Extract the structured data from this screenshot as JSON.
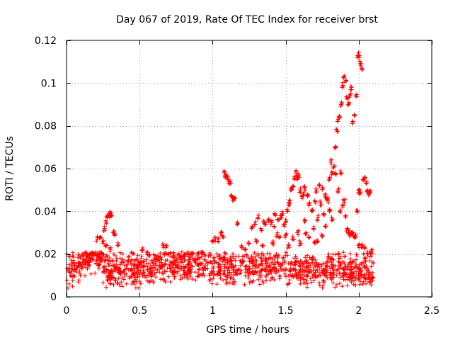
{
  "chart_data": {
    "type": "scatter",
    "title": "Day 067 of 2019, Rate Of TEC Index for receiver brst",
    "xlabel": "GPS time / hours",
    "ylabel": "ROTI / TECUs",
    "xlim": [
      0,
      2.5
    ],
    "ylim": [
      0,
      0.12
    ],
    "xticks": [
      0,
      0.5,
      1,
      1.5,
      2,
      2.5
    ],
    "xtick_labels": [
      "0",
      "0.5",
      "1",
      "1.5",
      "2",
      "2.5"
    ],
    "yticks": [
      0,
      0.02,
      0.04,
      0.06,
      0.08,
      0.1,
      0.12
    ],
    "ytick_labels": [
      "0",
      "0.02",
      "0.04",
      "0.06",
      "0.08",
      "0.1",
      "0.12"
    ],
    "grid": true,
    "marker": "+",
    "color": "#ff0000",
    "series": [
      {
        "name": "ROTI",
        "segments": [
          {
            "x": [
              0.0,
              0.1
            ],
            "y": [
              0.013,
              0.015
            ]
          },
          {
            "x": [
              0.1,
              0.25
            ],
            "y": [
              0.017,
              0.019
            ]
          },
          {
            "x": [
              0.25,
              0.6
            ],
            "y": [
              0.013,
              0.013
            ]
          },
          {
            "x": [
              0.6,
              1.0
            ],
            "y": [
              0.015,
              0.015
            ]
          },
          {
            "x": [
              1.0,
              1.5
            ],
            "y": [
              0.013,
              0.014
            ]
          },
          {
            "x": [
              1.5,
              2.1
            ],
            "y": [
              0.013,
              0.012
            ]
          }
        ],
        "bands": [
          {
            "x": [
              0.0,
              2.1
            ],
            "y_low": 0.004,
            "y_high": 0.021
          }
        ],
        "points": [
          {
            "x": 0.21,
            "y": 0.027
          },
          {
            "x": 0.23,
            "y": 0.028
          },
          {
            "x": 0.25,
            "y": 0.025
          },
          {
            "x": 0.26,
            "y": 0.032
          },
          {
            "x": 0.27,
            "y": 0.035
          },
          {
            "x": 0.28,
            "y": 0.037
          },
          {
            "x": 0.29,
            "y": 0.038
          },
          {
            "x": 0.3,
            "y": 0.039
          },
          {
            "x": 0.31,
            "y": 0.038
          },
          {
            "x": 0.32,
            "y": 0.03
          },
          {
            "x": 0.33,
            "y": 0.029
          },
          {
            "x": 0.27,
            "y": 0.024
          },
          {
            "x": 0.3,
            "y": 0.022
          },
          {
            "x": 0.35,
            "y": 0.024
          },
          {
            "x": 0.52,
            "y": 0.022
          },
          {
            "x": 0.55,
            "y": 0.021
          },
          {
            "x": 0.66,
            "y": 0.024
          },
          {
            "x": 0.68,
            "y": 0.023
          },
          {
            "x": 0.81,
            "y": 0.02
          },
          {
            "x": 0.86,
            "y": 0.02
          },
          {
            "x": 0.9,
            "y": 0.02
          },
          {
            "x": 0.93,
            "y": 0.021
          },
          {
            "x": 1.0,
            "y": 0.026
          },
          {
            "x": 1.02,
            "y": 0.027
          },
          {
            "x": 1.04,
            "y": 0.027
          },
          {
            "x": 1.06,
            "y": 0.03
          },
          {
            "x": 1.07,
            "y": 0.028
          },
          {
            "x": 1.08,
            "y": 0.058
          },
          {
            "x": 1.09,
            "y": 0.057
          },
          {
            "x": 1.1,
            "y": 0.056
          },
          {
            "x": 1.11,
            "y": 0.054
          },
          {
            "x": 1.12,
            "y": 0.053
          },
          {
            "x": 1.13,
            "y": 0.047
          },
          {
            "x": 1.14,
            "y": 0.046
          },
          {
            "x": 1.15,
            "y": 0.046
          },
          {
            "x": 1.17,
            "y": 0.034
          },
          {
            "x": 1.2,
            "y": 0.023
          },
          {
            "x": 1.22,
            "y": 0.022
          },
          {
            "x": 1.25,
            "y": 0.025
          },
          {
            "x": 1.27,
            "y": 0.033
          },
          {
            "x": 1.29,
            "y": 0.034
          },
          {
            "x": 1.3,
            "y": 0.026
          },
          {
            "x": 1.31,
            "y": 0.037
          },
          {
            "x": 1.33,
            "y": 0.032
          },
          {
            "x": 1.34,
            "y": 0.024
          },
          {
            "x": 1.35,
            "y": 0.035
          },
          {
            "x": 1.36,
            "y": 0.034
          },
          {
            "x": 1.38,
            "y": 0.036
          },
          {
            "x": 1.4,
            "y": 0.035
          },
          {
            "x": 1.41,
            "y": 0.025
          },
          {
            "x": 1.42,
            "y": 0.033
          },
          {
            "x": 1.43,
            "y": 0.038
          },
          {
            "x": 1.44,
            "y": 0.029
          },
          {
            "x": 1.45,
            "y": 0.036
          },
          {
            "x": 1.46,
            "y": 0.028
          },
          {
            "x": 1.47,
            "y": 0.037
          },
          {
            "x": 1.48,
            "y": 0.039
          },
          {
            "x": 1.49,
            "y": 0.033
          },
          {
            "x": 1.5,
            "y": 0.036
          },
          {
            "x": 1.51,
            "y": 0.041
          },
          {
            "x": 1.52,
            "y": 0.043
          },
          {
            "x": 1.53,
            "y": 0.045
          },
          {
            "x": 1.54,
            "y": 0.05
          },
          {
            "x": 1.55,
            "y": 0.052
          },
          {
            "x": 1.56,
            "y": 0.055
          },
          {
            "x": 1.57,
            "y": 0.058
          },
          {
            "x": 1.58,
            "y": 0.056
          },
          {
            "x": 1.59,
            "y": 0.057
          },
          {
            "x": 1.6,
            "y": 0.05
          },
          {
            "x": 1.61,
            "y": 0.047
          },
          {
            "x": 1.62,
            "y": 0.048
          },
          {
            "x": 1.63,
            "y": 0.051
          },
          {
            "x": 1.5,
            "y": 0.029
          },
          {
            "x": 1.52,
            "y": 0.024
          },
          {
            "x": 1.55,
            "y": 0.027
          },
          {
            "x": 1.58,
            "y": 0.03
          },
          {
            "x": 1.6,
            "y": 0.025
          },
          {
            "x": 1.63,
            "y": 0.035
          },
          {
            "x": 1.64,
            "y": 0.03
          },
          {
            "x": 1.66,
            "y": 0.028
          },
          {
            "x": 1.68,
            "y": 0.04
          },
          {
            "x": 1.69,
            "y": 0.032
          },
          {
            "x": 1.7,
            "y": 0.045
          },
          {
            "x": 1.71,
            "y": 0.05
          },
          {
            "x": 1.72,
            "y": 0.037
          },
          {
            "x": 1.73,
            "y": 0.052
          },
          {
            "x": 1.74,
            "y": 0.044
          },
          {
            "x": 1.75,
            "y": 0.051
          },
          {
            "x": 1.76,
            "y": 0.039
          },
          {
            "x": 1.77,
            "y": 0.048
          },
          {
            "x": 1.78,
            "y": 0.046
          },
          {
            "x": 1.79,
            "y": 0.045
          },
          {
            "x": 1.8,
            "y": 0.055
          },
          {
            "x": 1.81,
            "y": 0.063
          },
          {
            "x": 1.82,
            "y": 0.058
          },
          {
            "x": 1.83,
            "y": 0.061
          },
          {
            "x": 1.84,
            "y": 0.07
          },
          {
            "x": 1.85,
            "y": 0.078
          },
          {
            "x": 1.86,
            "y": 0.083
          },
          {
            "x": 1.87,
            "y": 0.084
          },
          {
            "x": 1.88,
            "y": 0.09
          },
          {
            "x": 1.89,
            "y": 0.099
          },
          {
            "x": 1.9,
            "y": 0.103
          },
          {
            "x": 1.91,
            "y": 0.101
          },
          {
            "x": 1.92,
            "y": 0.093
          },
          {
            "x": 1.93,
            "y": 0.09
          },
          {
            "x": 1.94,
            "y": 0.094
          },
          {
            "x": 1.95,
            "y": 0.098
          },
          {
            "x": 1.96,
            "y": 0.082
          },
          {
            "x": 1.97,
            "y": 0.085
          },
          {
            "x": 1.98,
            "y": 0.094
          },
          {
            "x": 1.99,
            "y": 0.112
          },
          {
            "x": 2.0,
            "y": 0.113
          },
          {
            "x": 2.01,
            "y": 0.109
          },
          {
            "x": 2.02,
            "y": 0.107
          },
          {
            "x": 1.84,
            "y": 0.058
          },
          {
            "x": 1.86,
            "y": 0.05
          },
          {
            "x": 1.88,
            "y": 0.058
          },
          {
            "x": 1.9,
            "y": 0.045
          },
          {
            "x": 1.91,
            "y": 0.038
          },
          {
            "x": 1.92,
            "y": 0.032
          },
          {
            "x": 1.93,
            "y": 0.03
          },
          {
            "x": 1.94,
            "y": 0.029
          },
          {
            "x": 1.95,
            "y": 0.03
          },
          {
            "x": 1.96,
            "y": 0.03
          },
          {
            "x": 1.97,
            "y": 0.028
          },
          {
            "x": 1.98,
            "y": 0.029
          },
          {
            "x": 1.99,
            "y": 0.04
          },
          {
            "x": 2.0,
            "y": 0.05
          },
          {
            "x": 2.01,
            "y": 0.049
          },
          {
            "x": 2.03,
            "y": 0.055
          },
          {
            "x": 2.04,
            "y": 0.056
          },
          {
            "x": 2.05,
            "y": 0.053
          },
          {
            "x": 2.06,
            "y": 0.05
          },
          {
            "x": 2.07,
            "y": 0.048
          },
          {
            "x": 2.08,
            "y": 0.049
          },
          {
            "x": 2.0,
            "y": 0.024
          },
          {
            "x": 2.02,
            "y": 0.024
          },
          {
            "x": 2.04,
            "y": 0.023
          },
          {
            "x": 2.06,
            "y": 0.02
          },
          {
            "x": 2.08,
            "y": 0.02
          },
          {
            "x": 2.09,
            "y": 0.021
          },
          {
            "x": 1.87,
            "y": 0.04
          },
          {
            "x": 1.89,
            "y": 0.042
          },
          {
            "x": 1.82,
            "y": 0.036
          },
          {
            "x": 1.8,
            "y": 0.04
          },
          {
            "x": 1.77,
            "y": 0.033
          },
          {
            "x": 1.75,
            "y": 0.028
          },
          {
            "x": 1.72,
            "y": 0.026
          },
          {
            "x": 1.7,
            "y": 0.025
          },
          {
            "x": 1.66,
            "y": 0.043
          },
          {
            "x": 1.65,
            "y": 0.047
          }
        ]
      }
    ]
  }
}
